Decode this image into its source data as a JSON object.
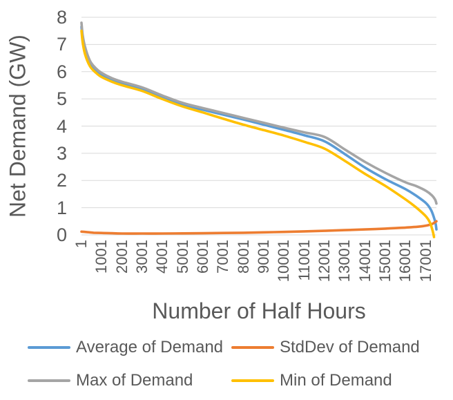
{
  "chart_data": {
    "type": "line",
    "title": "",
    "xlabel": "Number of Half Hours",
    "ylabel": "Net Demand (GW)",
    "xlim": [
      1,
      17519
    ],
    "ylim": [
      0,
      8
    ],
    "grid": "horizontal",
    "gridline_color": "#D9D9D9",
    "axis_text_color": "#595959",
    "legend_position": "bottom",
    "ytick_values": [
      0,
      1,
      2,
      3,
      4,
      5,
      6,
      7,
      8
    ],
    "ytick_labels": [
      "0",
      "1",
      "2",
      "3",
      "4",
      "5",
      "6",
      "7",
      "8"
    ],
    "xtick_values": [
      1,
      1001,
      2001,
      3001,
      4001,
      5001,
      6001,
      7001,
      8001,
      9001,
      10001,
      11001,
      12001,
      13001,
      14001,
      15001,
      16001,
      17001
    ],
    "xtick_labels": [
      "1",
      "1001",
      "2001",
      "3001",
      "4001",
      "5001",
      "6001",
      "7001",
      "8001",
      "9001",
      "10001",
      "11001",
      "12001",
      "13001",
      "14001",
      "15001",
      "16001",
      "17001"
    ],
    "series": [
      {
        "name": "Average of Demand",
        "color": "#5B9BD5",
        "points": [
          [
            1,
            7.65
          ],
          [
            60,
            7.2
          ],
          [
            180,
            6.75
          ],
          [
            420,
            6.3
          ],
          [
            700,
            6.05
          ],
          [
            1001,
            5.88
          ],
          [
            1500,
            5.7
          ],
          [
            2001,
            5.57
          ],
          [
            3001,
            5.36
          ],
          [
            4001,
            5.06
          ],
          [
            5001,
            4.79
          ],
          [
            6001,
            4.6
          ],
          [
            7001,
            4.42
          ],
          [
            8001,
            4.24
          ],
          [
            9001,
            4.05
          ],
          [
            10001,
            3.86
          ],
          [
            11001,
            3.66
          ],
          [
            12001,
            3.44
          ],
          [
            13001,
            2.97
          ],
          [
            14001,
            2.47
          ],
          [
            15001,
            2.05
          ],
          [
            16001,
            1.68
          ],
          [
            16501,
            1.45
          ],
          [
            17001,
            1.17
          ],
          [
            17251,
            0.92
          ],
          [
            17401,
            0.63
          ],
          [
            17481,
            0.4
          ],
          [
            17519,
            0.2
          ]
        ]
      },
      {
        "name": "StdDev of Demand",
        "color": "#ED7D31",
        "points": [
          [
            1,
            0.12
          ],
          [
            301,
            0.1
          ],
          [
            601,
            0.08
          ],
          [
            1001,
            0.07
          ],
          [
            1501,
            0.06
          ],
          [
            2001,
            0.05
          ],
          [
            3001,
            0.05
          ],
          [
            4001,
            0.05
          ],
          [
            5001,
            0.055
          ],
          [
            6001,
            0.06
          ],
          [
            7001,
            0.07
          ],
          [
            8001,
            0.08
          ],
          [
            9001,
            0.095
          ],
          [
            10001,
            0.11
          ],
          [
            11001,
            0.13
          ],
          [
            12001,
            0.15
          ],
          [
            13001,
            0.175
          ],
          [
            14001,
            0.2
          ],
          [
            15001,
            0.23
          ],
          [
            16001,
            0.27
          ],
          [
            16601,
            0.3
          ],
          [
            17001,
            0.34
          ],
          [
            17301,
            0.4
          ],
          [
            17519,
            0.5
          ]
        ]
      },
      {
        "name": "Max of Demand",
        "color": "#A5A5A5",
        "points": [
          [
            1,
            7.8
          ],
          [
            60,
            7.35
          ],
          [
            180,
            6.9
          ],
          [
            420,
            6.4
          ],
          [
            700,
            6.13
          ],
          [
            1001,
            5.95
          ],
          [
            1500,
            5.76
          ],
          [
            2001,
            5.63
          ],
          [
            3001,
            5.42
          ],
          [
            4001,
            5.12
          ],
          [
            5001,
            4.85
          ],
          [
            6001,
            4.66
          ],
          [
            7001,
            4.48
          ],
          [
            8001,
            4.3
          ],
          [
            9001,
            4.12
          ],
          [
            10001,
            3.94
          ],
          [
            11001,
            3.77
          ],
          [
            12001,
            3.6
          ],
          [
            13001,
            3.14
          ],
          [
            14001,
            2.68
          ],
          [
            15001,
            2.28
          ],
          [
            16001,
            1.93
          ],
          [
            16501,
            1.8
          ],
          [
            17001,
            1.62
          ],
          [
            17301,
            1.45
          ],
          [
            17451,
            1.3
          ],
          [
            17519,
            1.15
          ]
        ]
      },
      {
        "name": "Min of Demand",
        "color": "#FFC000",
        "points": [
          [
            1,
            7.5
          ],
          [
            60,
            7.08
          ],
          [
            180,
            6.63
          ],
          [
            420,
            6.2
          ],
          [
            700,
            5.97
          ],
          [
            1001,
            5.8
          ],
          [
            1500,
            5.63
          ],
          [
            2001,
            5.5
          ],
          [
            3001,
            5.29
          ],
          [
            4001,
            4.99
          ],
          [
            5001,
            4.72
          ],
          [
            6001,
            4.5
          ],
          [
            7001,
            4.27
          ],
          [
            8001,
            4.05
          ],
          [
            9001,
            3.85
          ],
          [
            10001,
            3.65
          ],
          [
            11001,
            3.42
          ],
          [
            12001,
            3.17
          ],
          [
            13001,
            2.72
          ],
          [
            14001,
            2.24
          ],
          [
            15001,
            1.8
          ],
          [
            16001,
            1.3
          ],
          [
            16501,
            1.02
          ],
          [
            17001,
            0.68
          ],
          [
            17201,
            0.45
          ],
          [
            17331,
            0.15
          ],
          [
            17401,
            -0.08
          ]
        ]
      }
    ]
  }
}
